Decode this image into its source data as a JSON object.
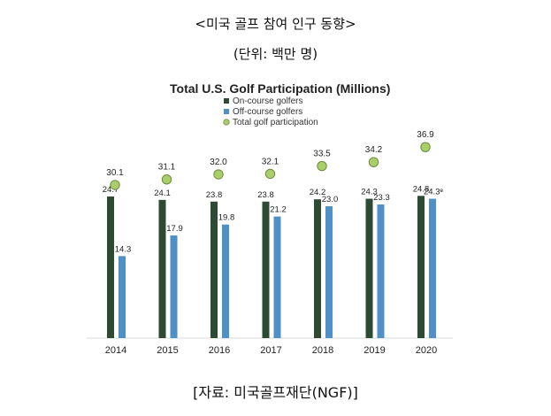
{
  "header": {
    "title": "<미국 골프 참여 인구 동향>",
    "unit": "(단위: 백만 명)"
  },
  "footer": {
    "source": "[자료: 미국골프재단(NGF)]"
  },
  "colors": {
    "on_course": "#2d4a33",
    "off_course": "#4f90c6",
    "total_marker": "#a9cf6a",
    "total_marker_stroke": "#6e8a3e"
  },
  "chart_data": {
    "type": "bar",
    "title": "Total U.S. Golf Participation (Millions)",
    "categories": [
      "2014",
      "2015",
      "2016",
      "2017",
      "2018",
      "2019",
      "2020"
    ],
    "series": [
      {
        "name": "On-course golfers",
        "type": "bar",
        "values": [
          24.7,
          24.1,
          23.8,
          23.8,
          24.2,
          24.3,
          24.8
        ],
        "labels": [
          "24.7",
          "24.1",
          "23.8",
          "23.8",
          "24.2",
          "24.3",
          "24.8"
        ]
      },
      {
        "name": "Off-course golfers",
        "type": "bar",
        "values": [
          14.3,
          17.9,
          19.8,
          21.2,
          23.0,
          23.3,
          24.3
        ],
        "labels": [
          "14.3",
          "17.9",
          "19.8",
          "21.2",
          "23.0",
          "23.3",
          "24.3ᵉ"
        ]
      },
      {
        "name": "Total golf participation",
        "type": "scatter",
        "values": [
          30.1,
          31.1,
          32.0,
          32.1,
          33.5,
          34.2,
          36.9
        ],
        "labels": [
          "30.1",
          "31.1",
          "32.0",
          "32.1",
          "33.5",
          "34.2",
          "36.9"
        ]
      }
    ],
    "legend": {
      "position": "top-left"
    },
    "xlabel": "",
    "ylabel": "",
    "grid": false
  }
}
